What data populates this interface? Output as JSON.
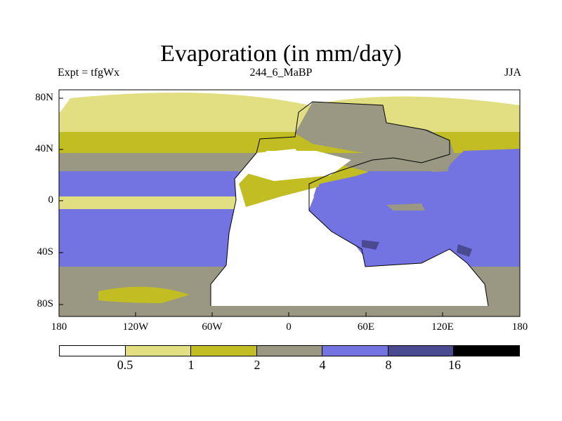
{
  "title": "Evaporation (in mm/day)",
  "left_label": "Expt = tfgWx",
  "center_label": "244_6_MaBP",
  "right_label": "JJA",
  "lat_ticks": [
    "80N",
    "40N",
    "0",
    "40S",
    "80S"
  ],
  "lon_ticks": [
    "180",
    "120W",
    "60W",
    "0",
    "60E",
    "120E",
    "180"
  ],
  "legend": {
    "labels": [
      "0.5",
      "1",
      "2",
      "4",
      "8",
      "16"
    ],
    "colors": [
      "#ffffff",
      "#e1df82",
      "#c2bd23",
      "#9a9883",
      "#7373e2",
      "#4a4a90",
      "#000000"
    ]
  },
  "palette": {
    "white": "#ffffff",
    "pale": "#e1df82",
    "olive": "#c2bd23",
    "gray": "#9a9883",
    "blue": "#7373e2",
    "navy": "#4a4a90"
  }
}
